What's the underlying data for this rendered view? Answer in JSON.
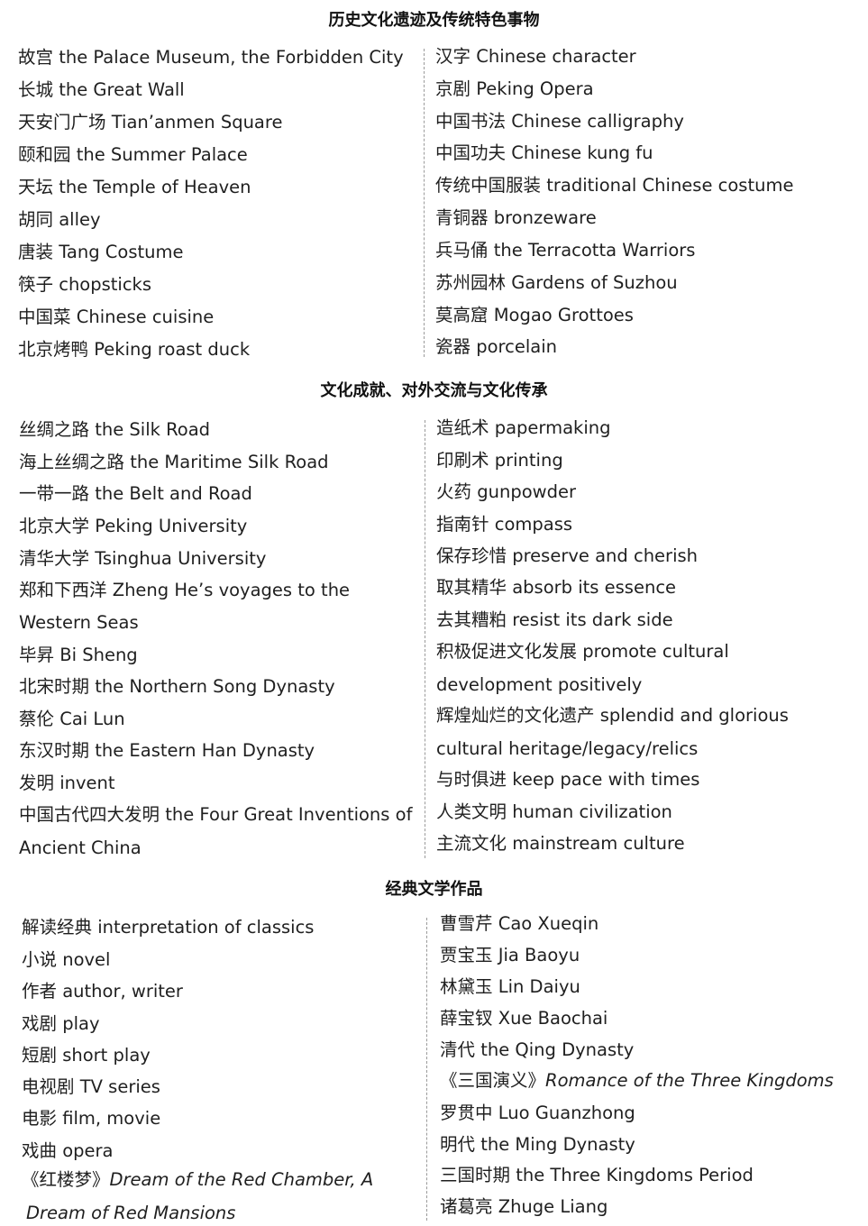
{
  "sections": [
    {
      "title": "历史文化遗迹及传统特色事物",
      "left": [
        [
          "故宫",
          "the Palace Museum, the Forbidden City"
        ],
        [
          "长城",
          "the Great Wall"
        ],
        [
          "天安门广场",
          "Tian’anmen Square"
        ],
        [
          "颐和园",
          "the Summer Palace"
        ],
        [
          "天坛",
          "the Temple of Heaven"
        ],
        [
          "胡同",
          "alley"
        ],
        [
          "唐装",
          "Tang Costume"
        ],
        [
          "筷子",
          "chopsticks"
        ],
        [
          "中国菜",
          "Chinese cuisine"
        ],
        [
          "北京烤鸭",
          "Peking roast duck"
        ]
      ],
      "right": [
        [
          "汉字",
          "Chinese character"
        ],
        [
          "京剧",
          "Peking Opera"
        ],
        [
          "中国书法",
          "Chinese calligraphy"
        ],
        [
          "中国功夫",
          "Chinese kung fu"
        ],
        [
          "传统中国服装",
          "traditional Chinese costume"
        ],
        [
          "青铜器",
          "bronzeware"
        ],
        [
          "兵马俑",
          "the Terracotta Warriors"
        ],
        [
          "苏州园林",
          "Gardens of Suzhou"
        ],
        [
          "莫高窟",
          "Mogao Grottoes"
        ],
        [
          "瓷器",
          "porcelain"
        ]
      ]
    },
    {
      "title": "文化成就、对外交流与文化传承",
      "left": [
        [
          "丝绸之路",
          "the Silk Road"
        ],
        [
          "海上丝绸之路",
          "the Maritime Silk Road"
        ],
        [
          "一带一路",
          "the Belt and Road"
        ],
        [
          "北京大学",
          "Peking University"
        ],
        [
          "清华大学",
          "Tsinghua University"
        ],
        [
          "郑和下西洋",
          "Zheng He’s voyages to the"
        ],
        [
          "",
          "Western Seas"
        ],
        [
          "毕昇",
          "Bi Sheng"
        ],
        [
          "北宋时期",
          "the Northern Song Dynasty"
        ],
        [
          "蔡伦",
          "Cai Lun"
        ],
        [
          "东汉时期",
          "the Eastern Han Dynasty"
        ],
        [
          "发明",
          "invent"
        ],
        [
          "中国古代四大发明",
          "the Four Great Inventions of"
        ],
        [
          "",
          "Ancient China"
        ]
      ],
      "right": [
        [
          "造纸术",
          "papermaking"
        ],
        [
          "印刷术",
          "printing"
        ],
        [
          "火药",
          "gunpowder"
        ],
        [
          "指南针",
          "compass"
        ],
        [
          "保存珍惜",
          "preserve and cherish"
        ],
        [
          "取其精华",
          "absorb its essence"
        ],
        [
          "去其糟粕",
          "resist its dark side"
        ],
        [
          "积极促进文化发展",
          "promote cultural"
        ],
        [
          "",
          "development positively"
        ],
        [
          "辉煌灿烂的文化遗产",
          "splendid and glorious"
        ],
        [
          "",
          "cultural heritage/legacy/relics"
        ],
        [
          "与时俱进",
          "keep pace with times"
        ],
        [
          "人类文明",
          "human civilization"
        ],
        [
          "主流文化",
          "mainstream culture"
        ]
      ]
    },
    {
      "title": "经典文学作品",
      "left": [
        [
          "解读经典",
          "interpretation of classics"
        ],
        [
          "小说",
          "novel"
        ],
        [
          "作者",
          "author, writer"
        ],
        [
          "戏剧",
          "play"
        ],
        [
          "短剧",
          "short play"
        ],
        [
          "电视剧",
          "TV series"
        ],
        [
          "电影",
          "film, movie"
        ],
        [
          "戏曲",
          "opera"
        ],
        [
          "《红楼梦》",
          "Dream of the Red Chamber, A"
        ],
        [
          "",
          "Dream of Red Mansions"
        ]
      ],
      "right": [
        [
          "曹雪芹",
          "Cao Xueqin"
        ],
        [
          "贾宝玉",
          "Jia Baoyu"
        ],
        [
          "林黛玉",
          "Lin Daiyu"
        ],
        [
          "薛宝钗",
          "Xue Baochai"
        ],
        [
          "清代",
          "the Qing Dynasty"
        ],
        [
          "《三国演义》",
          "Romance of the Three Kingdoms"
        ],
        [
          "罗贯中",
          "Luo Guanzhong"
        ],
        [
          "明代",
          "the Ming Dynasty"
        ],
        [
          "三国时期",
          "the Three Kingdoms Period"
        ],
        [
          "诸葛亮",
          "Zhuge Liang"
        ]
      ]
    }
  ]
}
